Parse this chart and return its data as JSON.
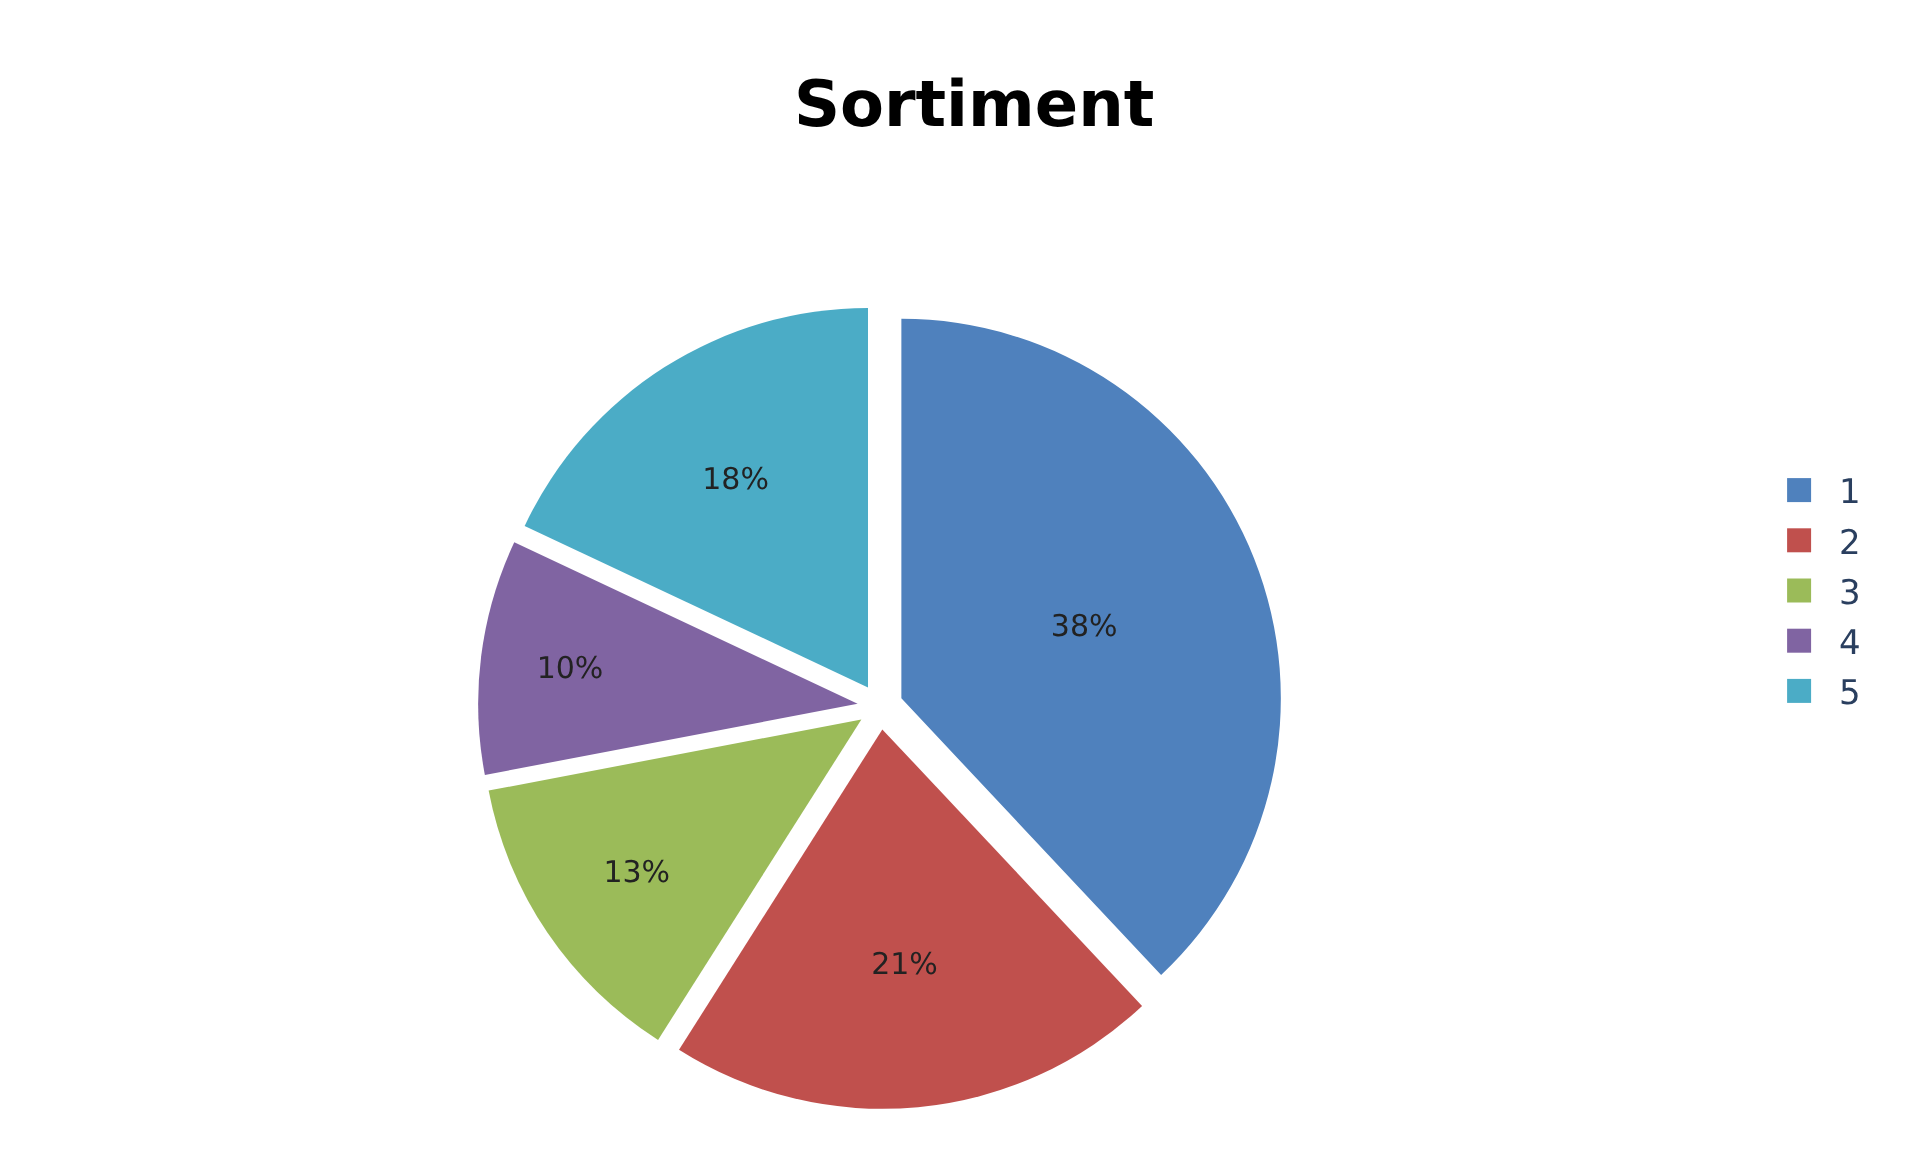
{
  "chart_data": {
    "type": "pie",
    "title": "Sortiment",
    "categories": [
      "1",
      "2",
      "3",
      "4",
      "5"
    ],
    "values": [
      38,
      21,
      13,
      10,
      18
    ],
    "value_labels": [
      "38%",
      "21%",
      "13%",
      "10%",
      "18%"
    ],
    "colors": [
      "#4f81bd",
      "#c0504d",
      "#9bbb59",
      "#8064a2",
      "#4bacc6"
    ],
    "legend": "right"
  }
}
